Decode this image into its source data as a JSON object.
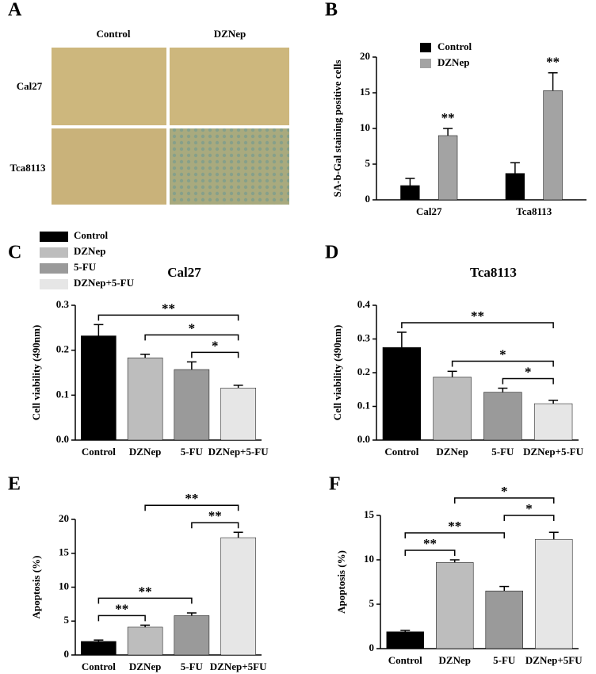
{
  "image_panel": {
    "panel_label": "A",
    "columns": [
      "Control",
      "DZNep"
    ],
    "rows": [
      "Cal27",
      "Tca8113"
    ]
  },
  "chart_data": [
    {
      "type": "bar",
      "panel_label": "B",
      "y_label": "SA-b-Gal staining positive cells",
      "categories": [
        "Cal27",
        "Tca8113"
      ],
      "series": [
        {
          "name": "Control",
          "color": "#000000",
          "values": [
            2.0,
            3.7
          ],
          "errors": [
            1.0,
            1.5
          ]
        },
        {
          "name": "DZNep",
          "color": "#a3a3a3",
          "values": [
            9.0,
            15.3
          ],
          "errors": [
            1.0,
            2.5
          ]
        }
      ],
      "ylim": [
        0,
        20
      ],
      "yticks": [
        0,
        5,
        10,
        15,
        20
      ],
      "annotations": [
        {
          "text": "**",
          "series": "DZNep",
          "category": "Cal27"
        },
        {
          "text": "**",
          "series": "DZNep",
          "category": "Tca8113"
        }
      ]
    },
    {
      "type": "bar",
      "panel_label": "C",
      "title": "Cal27",
      "y_label": "Cell viability (490nm)",
      "categories": [
        "Control",
        "DZNep",
        "5-FU",
        "DZNep+5-FU"
      ],
      "colors": [
        "#000000",
        "#bdbdbd",
        "#9a9a9a",
        "#e6e6e6"
      ],
      "values": [
        0.232,
        0.183,
        0.157,
        0.116
      ],
      "errors": [
        0.025,
        0.008,
        0.017,
        0.006
      ],
      "ylim": [
        0,
        0.3
      ],
      "yticks": [
        {
          "value": 0,
          "label": "0.0"
        },
        0.1,
        0.2,
        0.3
      ],
      "legend": [
        "Control",
        "DZNep",
        "5-FU",
        "DZNep+5-FU"
      ],
      "brackets": [
        {
          "text": "*",
          "from": "5-FU",
          "to": "DZNep+5-FU"
        },
        {
          "text": "*",
          "from": "DZNep",
          "to": "DZNep+5-FU"
        },
        {
          "text": "**",
          "from": "Control",
          "to": "DZNep+5-FU"
        }
      ]
    },
    {
      "type": "bar",
      "panel_label": "D",
      "title": "Tca8113",
      "y_label": "Cell viability (490nm)",
      "categories": [
        "Control",
        "DZNep",
        "5-FU",
        "DZNep+5-FU"
      ],
      "colors": [
        "#000000",
        "#bdbdbd",
        "#9a9a9a",
        "#e6e6e6"
      ],
      "values": [
        0.275,
        0.187,
        0.142,
        0.108
      ],
      "errors": [
        0.045,
        0.017,
        0.012,
        0.01
      ],
      "ylim": [
        0,
        0.4
      ],
      "yticks": [
        {
          "value": 0,
          "label": "0.0"
        },
        0.1,
        0.2,
        0.3,
        0.4
      ],
      "brackets": [
        {
          "text": "*",
          "from": "5-FU",
          "to": "DZNep+5-FU"
        },
        {
          "text": "*",
          "from": "DZNep",
          "to": "DZNep+5-FU"
        },
        {
          "text": "**",
          "from": "Control",
          "to": "DZNep+5-FU"
        }
      ]
    },
    {
      "type": "bar",
      "panel_label": "E",
      "y_label": "Apoptosis (%)",
      "categories": [
        "Control",
        "DZNep",
        "5-FU",
        "DZNep+5FU"
      ],
      "colors": [
        "#000000",
        "#bdbdbd",
        "#9a9a9a",
        "#e6e6e6"
      ],
      "values": [
        2.0,
        4.1,
        5.8,
        17.3
      ],
      "errors": [
        0.2,
        0.3,
        0.4,
        0.8
      ],
      "ylim": [
        0,
        20
      ],
      "yticks": [
        0,
        5,
        10,
        15,
        20
      ],
      "brackets": [
        {
          "text": "**",
          "from": "Control",
          "to": "DZNep"
        },
        {
          "text": "**",
          "from": "Control",
          "to": "5-FU"
        },
        {
          "text": "**",
          "from": "5-FU",
          "to": "DZNep+5FU"
        },
        {
          "text": "**",
          "from": "DZNep",
          "to": "DZNep+5FU"
        }
      ]
    },
    {
      "type": "bar",
      "panel_label": "F",
      "y_label": "Apoptosis (%)",
      "categories": [
        "Control",
        "DZNep",
        "5-FU",
        "DZNep+5FU"
      ],
      "colors": [
        "#000000",
        "#bdbdbd",
        "#9a9a9a",
        "#e6e6e6"
      ],
      "values": [
        1.9,
        9.7,
        6.5,
        12.3
      ],
      "errors": [
        0.15,
        0.3,
        0.5,
        0.8
      ],
      "ylim": [
        0,
        15
      ],
      "yticks": [
        0,
        5,
        10,
        15
      ],
      "brackets": [
        {
          "text": "**",
          "from": "Control",
          "to": "DZNep"
        },
        {
          "text": "**",
          "from": "Control",
          "to": "5-FU"
        },
        {
          "text": "*",
          "from": "5-FU",
          "to": "DZNep+5FU"
        },
        {
          "text": "*",
          "from": "DZNep",
          "to": "DZNep+5FU"
        }
      ]
    }
  ]
}
